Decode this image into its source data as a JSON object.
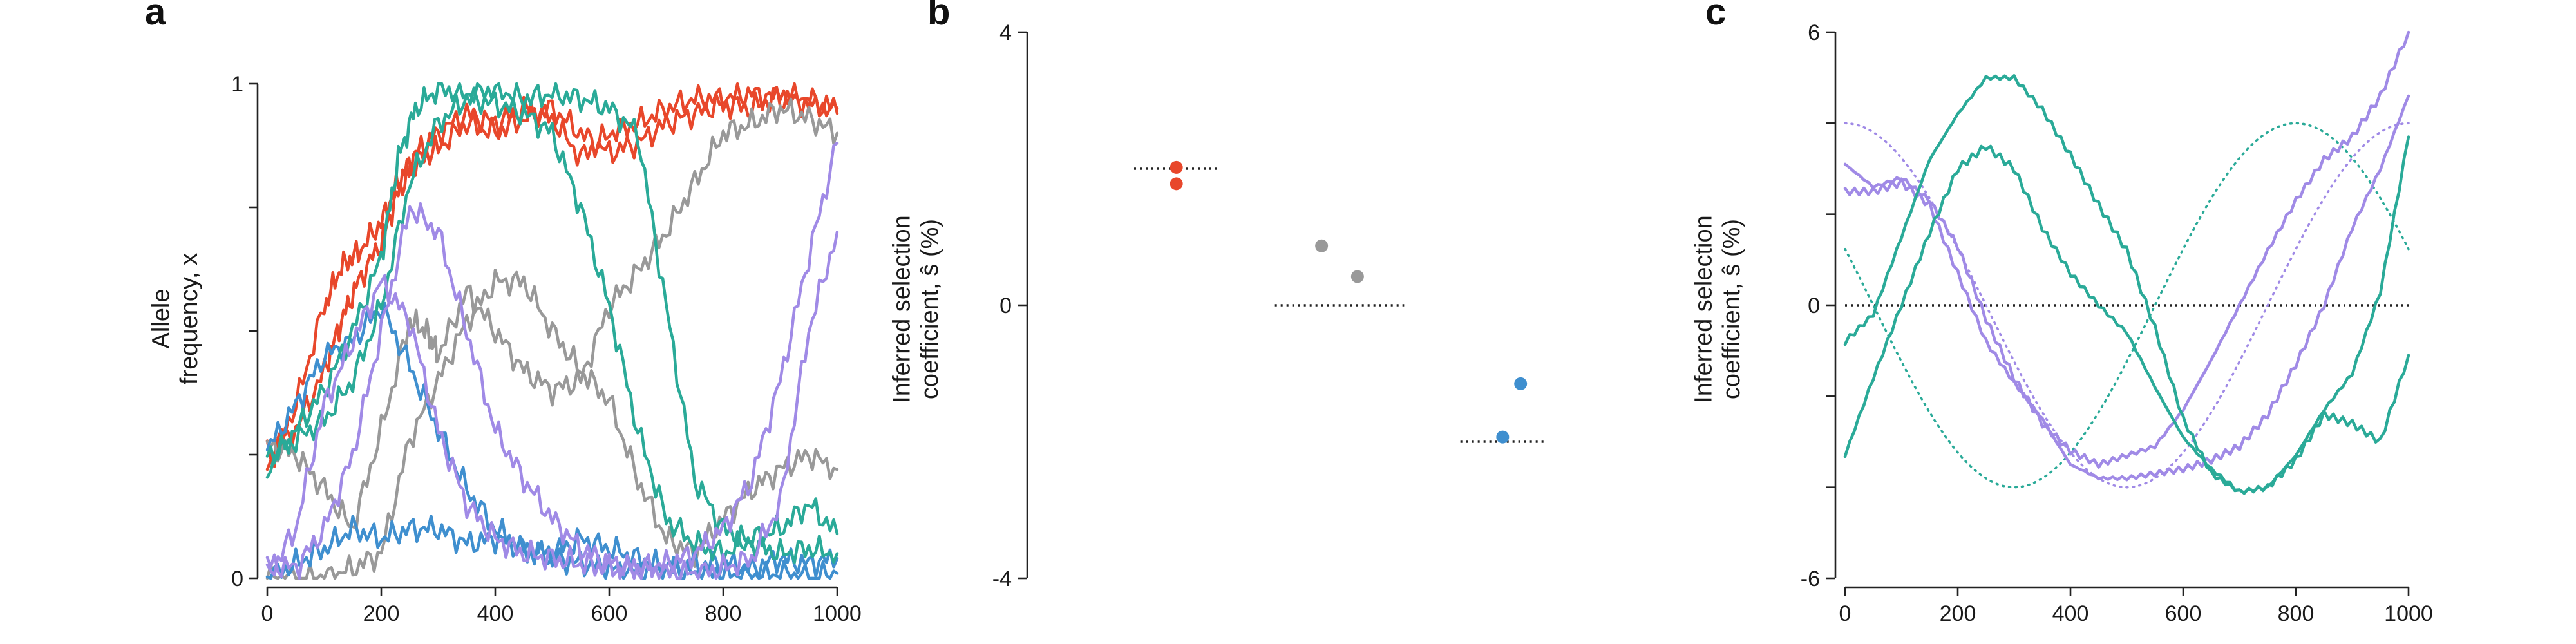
{
  "chart_data": [
    {
      "panel": "a",
      "type": "line",
      "ylabel_lines": [
        "Allele",
        "frequency, x"
      ],
      "xlim": [
        0,
        1000
      ],
      "ylim": [
        0,
        1
      ],
      "xticks": [
        0,
        200,
        400,
        600,
        800,
        1000
      ],
      "yticks": [
        0,
        1
      ],
      "colors": {
        "positive": "#e8472b",
        "neutral": "#999999",
        "negative": "#3f8fcf",
        "green": "#2aaa98",
        "purple": "#a08ae6"
      },
      "series": [
        {
          "group": "positive",
          "x": [
            0,
            50,
            100,
            130,
            160,
            200,
            230,
            260,
            300,
            350,
            400,
            450,
            500,
            550,
            600,
            650,
            700,
            750,
            800,
            850,
            900,
            950,
            1000
          ],
          "y": [
            0.22,
            0.35,
            0.55,
            0.63,
            0.66,
            0.72,
            0.8,
            0.86,
            0.9,
            0.94,
            0.92,
            0.95,
            0.93,
            0.85,
            0.9,
            0.92,
            0.95,
            0.97,
            0.97,
            0.98,
            0.97,
            0.96,
            0.95
          ]
        },
        {
          "group": "positive",
          "x": [
            0,
            50,
            100,
            130,
            160,
            200,
            230,
            260,
            300,
            350,
            400,
            450,
            500,
            550,
            600,
            650,
            700,
            750,
            800,
            850,
            900,
            950,
            1000
          ],
          "y": [
            0.25,
            0.3,
            0.42,
            0.52,
            0.6,
            0.68,
            0.78,
            0.84,
            0.87,
            0.92,
            0.9,
            0.93,
            0.95,
            0.9,
            0.86,
            0.88,
            0.92,
            0.94,
            0.96,
            0.95,
            0.98,
            0.97,
            0.94
          ]
        },
        {
          "group": "neutral",
          "x": [
            0,
            50,
            100,
            150,
            200,
            250,
            280,
            300,
            350,
            400,
            450,
            500,
            550,
            600,
            650,
            700,
            750,
            800,
            850,
            900,
            950,
            1000
          ],
          "y": [
            0.27,
            0.25,
            0.18,
            0.1,
            0.3,
            0.52,
            0.5,
            0.45,
            0.58,
            0.5,
            0.42,
            0.38,
            0.4,
            0.55,
            0.62,
            0.7,
            0.8,
            0.9,
            0.92,
            0.95,
            0.93,
            0.9
          ]
        },
        {
          "group": "neutral",
          "x": [
            0,
            50,
            100,
            150,
            200,
            250,
            300,
            350,
            400,
            450,
            500,
            550,
            600,
            650,
            700,
            750,
            800,
            850,
            900,
            950,
            1000
          ],
          "y": [
            0.0,
            0.0,
            0.0,
            0.02,
            0.05,
            0.28,
            0.4,
            0.52,
            0.6,
            0.6,
            0.5,
            0.42,
            0.36,
            0.2,
            0.08,
            0.05,
            0.12,
            0.18,
            0.22,
            0.25,
            0.22
          ]
        },
        {
          "group": "negative",
          "x": [
            0,
            50,
            100,
            150,
            200,
            250,
            300,
            350,
            400,
            450,
            500,
            550,
            600,
            650,
            700,
            750,
            800,
            850,
            900,
            950,
            1000
          ],
          "y": [
            0.26,
            0.35,
            0.45,
            0.48,
            0.55,
            0.43,
            0.3,
            0.18,
            0.1,
            0.06,
            0.04,
            0.03,
            0.02,
            0.01,
            0.02,
            0.01,
            0.01,
            0.0,
            0.01,
            0.0,
            0.01
          ]
        },
        {
          "group": "negative",
          "x": [
            0,
            50,
            100,
            150,
            200,
            250,
            300,
            350,
            400,
            450,
            500,
            550,
            600,
            650,
            700,
            750,
            800,
            850,
            900,
            950,
            1000
          ],
          "y": [
            0.0,
            0.03,
            0.06,
            0.1,
            0.08,
            0.1,
            0.1,
            0.07,
            0.08,
            0.06,
            0.05,
            0.08,
            0.06,
            0.04,
            0.02,
            0.03,
            0.03,
            0.02,
            0.04,
            0.03,
            0.04
          ]
        },
        {
          "group": "green",
          "x": [
            0,
            50,
            100,
            150,
            200,
            230,
            260,
            300,
            350,
            400,
            450,
            500,
            550,
            600,
            650,
            700,
            750,
            800,
            850,
            900,
            950,
            1000
          ],
          "y": [
            0.22,
            0.3,
            0.38,
            0.5,
            0.65,
            0.85,
            0.95,
            0.99,
            0.98,
            0.99,
            0.97,
            0.98,
            0.97,
            0.95,
            0.9,
            0.55,
            0.2,
            0.1,
            0.07,
            0.05,
            0.06,
            0.05
          ]
        },
        {
          "group": "green",
          "x": [
            0,
            50,
            100,
            150,
            200,
            250,
            300,
            350,
            400,
            450,
            500,
            550,
            600,
            650,
            700,
            750,
            800,
            850,
            900,
            950,
            1000
          ],
          "y": [
            0.25,
            0.28,
            0.32,
            0.4,
            0.55,
            0.8,
            0.92,
            0.97,
            0.96,
            0.94,
            0.9,
            0.75,
            0.55,
            0.3,
            0.12,
            0.07,
            0.05,
            0.08,
            0.1,
            0.15,
            0.09
          ]
        },
        {
          "group": "purple",
          "x": [
            0,
            50,
            100,
            150,
            200,
            250,
            300,
            350,
            400,
            450,
            500,
            550,
            600,
            650,
            700,
            750,
            800,
            850,
            900,
            950,
            1000
          ],
          "y": [
            0.0,
            0.1,
            0.35,
            0.48,
            0.6,
            0.52,
            0.3,
            0.15,
            0.08,
            0.05,
            0.04,
            0.03,
            0.02,
            0.02,
            0.03,
            0.05,
            0.1,
            0.2,
            0.4,
            0.65,
            0.88
          ]
        },
        {
          "group": "purple",
          "x": [
            0,
            50,
            100,
            150,
            200,
            250,
            300,
            350,
            400,
            450,
            500,
            550,
            600,
            650,
            700,
            750,
            800,
            850,
            900,
            950,
            1000
          ],
          "y": [
            0.03,
            0.02,
            0.1,
            0.25,
            0.5,
            0.75,
            0.7,
            0.5,
            0.3,
            0.2,
            0.12,
            0.06,
            0.03,
            0.02,
            0.01,
            0.01,
            0.02,
            0.04,
            0.15,
            0.5,
            0.7
          ]
        }
      ]
    },
    {
      "panel": "b",
      "type": "scatter",
      "ylabel_lines": [
        "Inferred selection",
        "coefficient, ŝ (%)"
      ],
      "ylim": [
        -4,
        4
      ],
      "yticks": [
        -4,
        0,
        4
      ],
      "groups": [
        {
          "name": "positive",
          "color": "#e8472b",
          "true_value": 2.0,
          "points": [
            [
              0,
              2.02
            ],
            [
              0,
              1.78
            ]
          ]
        },
        {
          "name": "neutral",
          "color": "#999999",
          "true_value": 0.0,
          "points": [
            [
              -0.2,
              0.87
            ],
            [
              0.2,
              0.42
            ]
          ]
        },
        {
          "name": "negative",
          "color": "#3f8fcf",
          "true_value": -2.0,
          "points": [
            [
              0.2,
              -1.15
            ],
            [
              0.0,
              -1.93
            ]
          ]
        }
      ]
    },
    {
      "panel": "c",
      "type": "line",
      "ylabel_lines": [
        "Inferred selection",
        "coefficient, ŝ (%)"
      ],
      "xlim": [
        0,
        1000
      ],
      "ylim": [
        -6,
        6
      ],
      "xticks": [
        0,
        200,
        400,
        600,
        800,
        1000
      ],
      "yticks": [
        -6,
        0,
        6
      ],
      "true_functions": [
        {
          "group": "purple",
          "color": "#a08ae6",
          "description": "s(t) = 4 cos(2πt/1000)"
        },
        {
          "group": "green",
          "color": "#2aaa98",
          "description": "s(t) = -4 cos(2π(t-300)/1000)"
        }
      ],
      "series": [
        {
          "group": "purple",
          "x": [
            0,
            50,
            100,
            150,
            200,
            250,
            300,
            350,
            400,
            450,
            500,
            550,
            600,
            650,
            700,
            750,
            800,
            850,
            900,
            950,
            1000
          ],
          "y": [
            3.1,
            2.6,
            2.8,
            2.3,
            1.3,
            -0.3,
            -1.6,
            -2.6,
            -3.2,
            -3.5,
            -3.3,
            -3.1,
            -2.3,
            -1.2,
            0.0,
            1.2,
            2.3,
            3.2,
            3.7,
            4.6,
            6.0
          ]
        },
        {
          "group": "purple",
          "x": [
            0,
            50,
            100,
            150,
            200,
            250,
            300,
            350,
            400,
            450,
            500,
            550,
            600,
            650,
            700,
            750,
            800,
            850,
            900,
            950,
            1000
          ],
          "y": [
            2.5,
            2.5,
            2.7,
            2.2,
            0.7,
            -0.8,
            -1.7,
            -2.5,
            -3.5,
            -3.8,
            -3.8,
            -3.7,
            -3.6,
            -3.4,
            -3.1,
            -2.4,
            -1.3,
            0.0,
            1.7,
            3.0,
            4.6
          ]
        },
        {
          "group": "green",
          "x": [
            0,
            50,
            100,
            150,
            200,
            250,
            300,
            350,
            400,
            450,
            500,
            550,
            600,
            650,
            700,
            750,
            800,
            850,
            900,
            950,
            1000
          ],
          "y": [
            -0.8,
            -0.2,
            1.5,
            3.2,
            4.2,
            5.0,
            5.0,
            4.3,
            3.3,
            2.2,
            1.2,
            -0.5,
            -2.5,
            -3.7,
            -4.1,
            -4.0,
            -3.3,
            -2.3,
            -1.5,
            0.3,
            3.7
          ]
        },
        {
          "group": "green",
          "x": [
            0,
            50,
            100,
            150,
            200,
            250,
            300,
            350,
            400,
            450,
            500,
            550,
            600,
            650,
            700,
            750,
            800,
            850,
            900,
            950,
            1000
          ],
          "y": [
            -3.3,
            -1.6,
            0.0,
            1.6,
            3.0,
            3.5,
            3.0,
            1.7,
            0.7,
            0.0,
            -0.6,
            -1.8,
            -2.9,
            -3.6,
            -4.1,
            -4.0,
            -3.4,
            -2.4,
            -2.6,
            -3.0,
            -1.1
          ]
        }
      ]
    }
  ]
}
